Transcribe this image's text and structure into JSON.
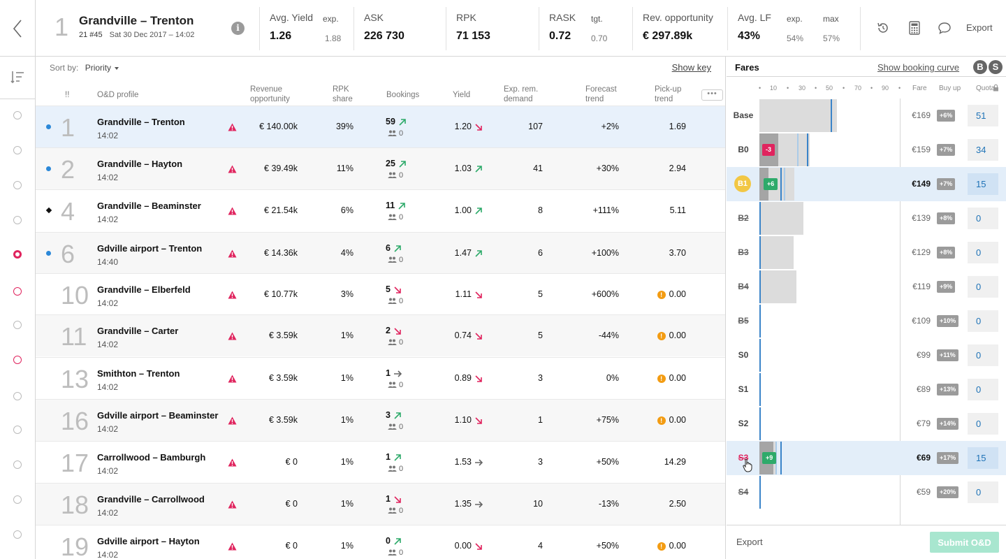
{
  "header": {
    "route_rank": "1",
    "route_title": "Grandville – Trenton",
    "flight": "21 #45",
    "date": "Sat 30 Dec 2017 – 14:02",
    "kpis": {
      "avg_yield": {
        "label": "Avg. Yield",
        "value": "1.26",
        "sub_label": "exp.",
        "sub_value": "1.88"
      },
      "ask": {
        "label": "ASK",
        "value": "226 730"
      },
      "rpk": {
        "label": "RPK",
        "value": "71 153"
      },
      "rask": {
        "label": "RASK",
        "value": "0.72",
        "sub_label": "tgt.",
        "sub_value": "0.70"
      },
      "rev_opp": {
        "label": "Rev. opportunity",
        "value": "€ 297.89k"
      },
      "avg_lf": {
        "label": "Avg. LF",
        "value": "43%",
        "exp_label": "exp.",
        "exp_value": "54%",
        "max_label": "max",
        "max_value": "57%"
      }
    },
    "export_label": "Export",
    "icons": [
      "back-icon",
      "info-icon",
      "history-icon",
      "calculator-icon",
      "comment-icon"
    ]
  },
  "table": {
    "sort_label": "Sort by:",
    "sort_value": "Priority",
    "show_key": "Show key",
    "columns": {
      "priority": "!!",
      "od": "O&D profile",
      "rev_line1": "Revenue",
      "rev_line2": "opportunity",
      "rpk_line1": "RPK",
      "rpk_line2": "share",
      "bookings": "Bookings",
      "yield": "Yield",
      "exp_line1": "Exp. rem.",
      "exp_line2": "demand",
      "fc_line1": "Forecast",
      "fc_line2": "trend",
      "pu_line1": "Pick-up",
      "pu_line2": "trend"
    },
    "more_label": "•••",
    "rows": [
      {
        "rank": "1",
        "od": "Grandville – Trenton",
        "time": "14:02",
        "rev": "€ 140.00k",
        "rpk": "39%",
        "bookings": "59",
        "group": "0",
        "yield": "1.20",
        "exp": "107",
        "forecast": "+2%",
        "pickup": "1.69"
      },
      {
        "rank": "2",
        "od": "Grandville – Hayton",
        "time": "14:02",
        "rev": "€ 39.49k",
        "rpk": "11%",
        "bookings": "25",
        "group": "0",
        "yield": "1.03",
        "exp": "41",
        "forecast": "+30%",
        "pickup": "2.94"
      },
      {
        "rank": "4",
        "od": "Grandville – Beaminster",
        "time": "14:02",
        "rev": "€ 21.54k",
        "rpk": "6%",
        "bookings": "11",
        "group": "0",
        "yield": "1.00",
        "exp": "8",
        "forecast": "+111%",
        "pickup": "5.11"
      },
      {
        "rank": "6",
        "od": "Gdville airport – Trenton",
        "time": "14:40",
        "rev": "€ 14.36k",
        "rpk": "4%",
        "bookings": "6",
        "group": "0",
        "yield": "1.47",
        "exp": "6",
        "forecast": "+100%",
        "pickup": "3.70"
      },
      {
        "rank": "10",
        "od": "Grandville – Elberfeld",
        "time": "14:02",
        "rev": "€ 10.77k",
        "rpk": "3%",
        "bookings": "5",
        "group": "0",
        "yield": "1.11",
        "exp": "5",
        "forecast": "+600%",
        "pickup": "0.00"
      },
      {
        "rank": "11",
        "od": "Grandville – Carter",
        "time": "14:02",
        "rev": "€ 3.59k",
        "rpk": "1%",
        "bookings": "2",
        "group": "0",
        "yield": "0.74",
        "exp": "5",
        "forecast": "-44%",
        "pickup": "0.00"
      },
      {
        "rank": "13",
        "od": "Smithton – Trenton",
        "time": "14:02",
        "rev": "€ 3.59k",
        "rpk": "1%",
        "bookings": "1",
        "group": "0",
        "yield": "0.89",
        "exp": "3",
        "forecast": "0%",
        "pickup": "0.00"
      },
      {
        "rank": "16",
        "od": "Gdville airport – Beaminster",
        "time": "14:02",
        "rev": "€ 3.59k",
        "rpk": "1%",
        "bookings": "3",
        "group": "0",
        "yield": "1.10",
        "exp": "1",
        "forecast": "+75%",
        "pickup": "0.00"
      },
      {
        "rank": "17",
        "od": "Carrollwood – Bamburgh",
        "time": "14:02",
        "rev": "€ 0",
        "rpk": "1%",
        "bookings": "1",
        "group": "0",
        "yield": "1.53",
        "exp": "3",
        "forecast": "+50%",
        "pickup": "14.29"
      },
      {
        "rank": "18",
        "od": "Grandville – Carrollwood",
        "time": "14:02",
        "rev": "€ 0",
        "rpk": "1%",
        "bookings": "1",
        "group": "0",
        "yield": "1.35",
        "exp": "10",
        "forecast": "-13%",
        "pickup": "2.50"
      },
      {
        "rank": "19",
        "od": "Gdville airport – Hayton",
        "time": "14:02",
        "rev": "€ 0",
        "rpk": "1%",
        "bookings": "0",
        "group": "0",
        "yield": "0.00",
        "exp": "4",
        "forecast": "+50%",
        "pickup": "0.00"
      }
    ]
  },
  "fares": {
    "title": "Fares",
    "show_booking_curve": "Show booking curve",
    "toggle_b": "B",
    "toggle_s": "S",
    "axis_ticks": [
      "10",
      "30",
      "50",
      "70",
      "90"
    ],
    "col_fare": "Fare",
    "col_buyup": "Buy up",
    "col_quota": "Quota",
    "rows": [
      {
        "cls": "Base",
        "fare": "€169",
        "buyup": "+6%",
        "quota": "51"
      },
      {
        "cls": "B0",
        "fare": "€159",
        "buyup": "+7%",
        "quota": "34",
        "chip": "-3"
      },
      {
        "cls": "B1",
        "fare": "€149",
        "buyup": "+7%",
        "quota": "15",
        "chip": "+6"
      },
      {
        "cls": "B2",
        "fare": "€139",
        "buyup": "+8%",
        "quota": "0"
      },
      {
        "cls": "B3",
        "fare": "€129",
        "buyup": "+8%",
        "quota": "0"
      },
      {
        "cls": "B4",
        "fare": "€119",
        "buyup": "+9%",
        "quota": "0"
      },
      {
        "cls": "B5",
        "fare": "€109",
        "buyup": "+10%",
        "quota": "0"
      },
      {
        "cls": "S0",
        "fare": "€99",
        "buyup": "+11%",
        "quota": "0"
      },
      {
        "cls": "S1",
        "fare": "€89",
        "buyup": "+13%",
        "quota": "0"
      },
      {
        "cls": "S2",
        "fare": "€79",
        "buyup": "+14%",
        "quota": "0"
      },
      {
        "cls": "S3",
        "fare": "€69",
        "buyup": "+17%",
        "quota": "15",
        "chip": "+9"
      },
      {
        "cls": "S4",
        "fare": "€59",
        "buyup": "+20%",
        "quota": "0"
      }
    ],
    "export_label": "Export",
    "submit_label": "Submit O&D"
  },
  "colors": {
    "accent_blue": "#2b88d8",
    "alert_pink": "#e0245e",
    "up_green": "#2eaa6a",
    "warn_orange": "#f39c12",
    "submit_green": "#a8e6cf"
  }
}
